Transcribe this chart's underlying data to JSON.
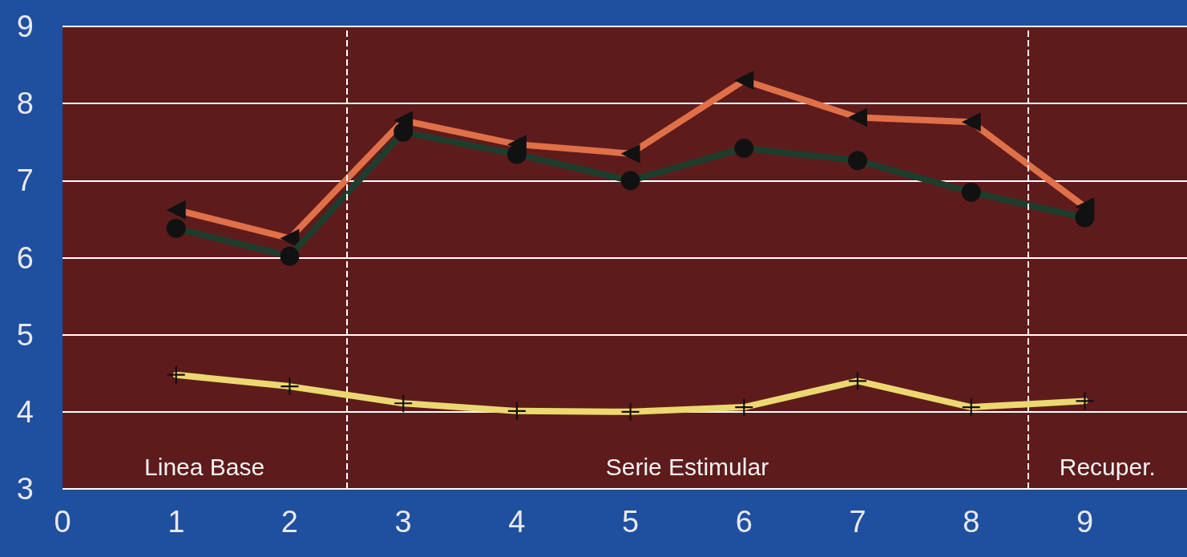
{
  "chart_data": {
    "type": "line",
    "x": [
      1,
      2,
      3,
      4,
      5,
      6,
      7,
      8,
      9
    ],
    "series": [
      {
        "color": "#e07048",
        "marker": "triangle",
        "values": [
          6.62,
          6.25,
          7.78,
          7.47,
          7.35,
          8.3,
          7.82,
          7.76,
          6.66
        ]
      },
      {
        "color": "#1e3d2c",
        "marker": "circle",
        "values": [
          6.38,
          6.02,
          7.63,
          7.34,
          7.0,
          7.42,
          7.26,
          6.85,
          6.52
        ]
      },
      {
        "color": "#ecd870",
        "marker": "cross",
        "values": [
          4.48,
          4.33,
          4.11,
          4.01,
          4.0,
          4.06,
          4.4,
          4.06,
          4.14
        ]
      }
    ],
    "xlim": [
      0,
      9.9
    ],
    "xticks": [
      0,
      1,
      2,
      3,
      4,
      5,
      6,
      7,
      8,
      9
    ],
    "ylim": [
      3,
      9
    ],
    "yticks": [
      3,
      4,
      5,
      6,
      7,
      8,
      9
    ],
    "grid": "y",
    "line_style": "solid",
    "ref_lines": [
      {
        "axis": "x",
        "value": 2.5,
        "color": "#ffffff",
        "line_style": "dashed"
      },
      {
        "axis": "x",
        "value": 8.5,
        "color": "#ffffff",
        "line_style": "dashed"
      }
    ],
    "annotations": [
      "Linea Base",
      "Serie Estimular",
      "Recuper."
    ]
  }
}
